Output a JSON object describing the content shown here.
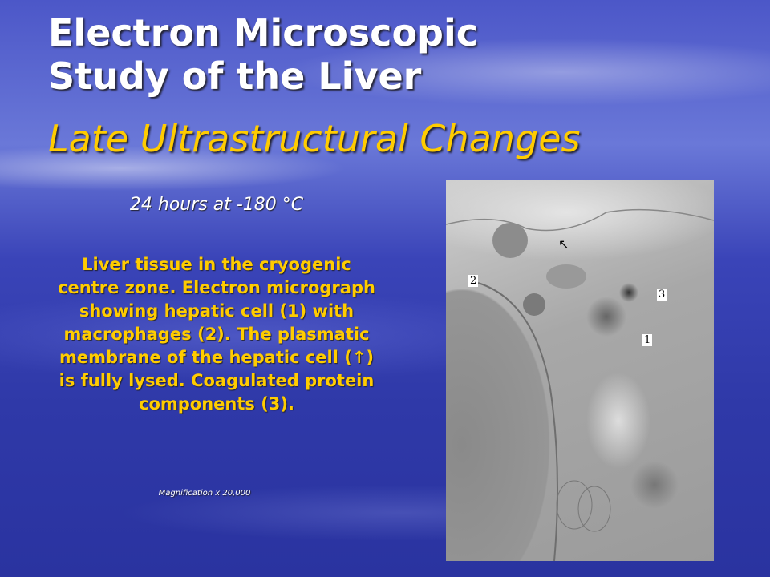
{
  "slide": {
    "title_line1": "Electron Microscopic",
    "title_line2": "Study of the Liver",
    "subtitle": "Late Ultrastructural Changes",
    "condition": "24 hours at -180 °C",
    "description": "Liver tissue in the cryogenic centre zone. Electron micrograph showing hepatic cell (1) with macrophages (2). The plasmatic membrane of the hepatic cell (↑) is fully lysed. Coagulated protein components (3).",
    "magnification": "Magnification x 20,000"
  },
  "micrograph": {
    "labels": [
      "2",
      "3",
      "1"
    ],
    "arrow": "↖"
  },
  "colors": {
    "title": "#ffffff",
    "subtitle": "#ffcc00",
    "body": "#ffcc00"
  }
}
